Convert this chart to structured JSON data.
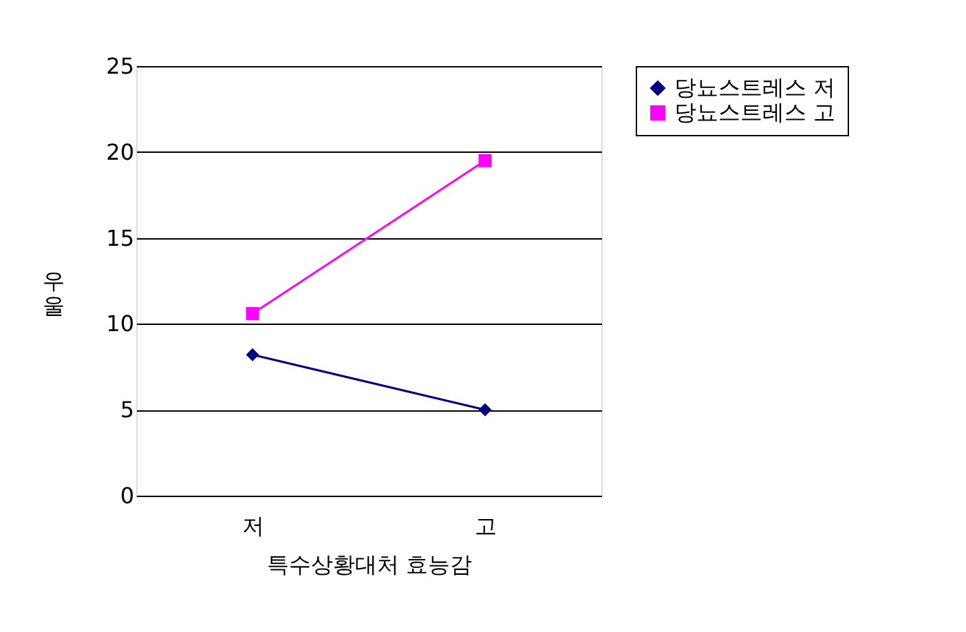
{
  "chart_data": {
    "type": "line",
    "categories": [
      "저",
      "고"
    ],
    "xlabel": "특수상황대처 효능감",
    "ylabel": "우울",
    "ylim": [
      0,
      25
    ],
    "yticks": [
      0,
      5,
      10,
      15,
      20,
      25
    ],
    "grid": "y",
    "legend": "right",
    "series": [
      {
        "name": "당뇨스트레스 저",
        "color": "#000080",
        "values": [
          8.2,
          5.0
        ],
        "marker": "diamond"
      },
      {
        "name": "당뇨스트레스 고",
        "color": "#ff00ff",
        "values": [
          10.6,
          19.5
        ],
        "marker": "square"
      }
    ]
  }
}
